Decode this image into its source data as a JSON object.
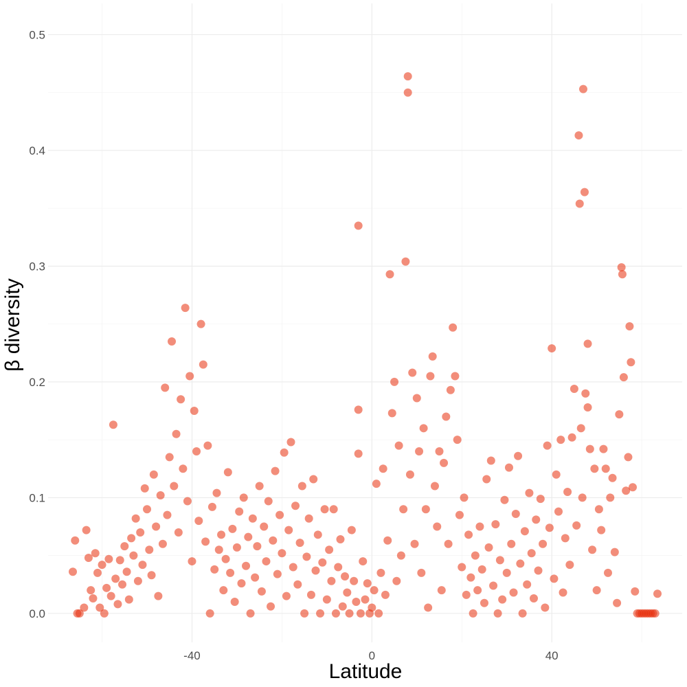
{
  "chart_data": {
    "type": "scatter",
    "xlabel": "Latitude",
    "ylabel": "β diversity",
    "xlim": [
      -72,
      69
    ],
    "ylim": [
      -0.025,
      0.527
    ],
    "x_ticks": [
      -40,
      0,
      40
    ],
    "x_tick_labels": [
      "-40",
      "0",
      "40"
    ],
    "y_ticks": [
      0.0,
      0.1,
      0.2,
      0.3,
      0.4,
      0.5
    ],
    "y_tick_labels": [
      "0.0",
      "0.1",
      "0.2",
      "0.3",
      "0.4",
      "0.5"
    ],
    "grid": true,
    "point_color": "#e8300d",
    "point_opacity": 0.55,
    "series": [
      {
        "points": [
          [
            -66.5,
            0.036
          ],
          [
            -66,
            0.063
          ],
          [
            -65.5,
            0.0
          ],
          [
            -65,
            0.0
          ],
          [
            -64,
            0.005
          ],
          [
            -63.5,
            0.072
          ],
          [
            -63,
            0.048
          ],
          [
            -62.5,
            0.02
          ],
          [
            -62,
            0.013
          ],
          [
            -61.5,
            0.052
          ],
          [
            -61,
            0.035
          ],
          [
            -60.5,
            0.005
          ],
          [
            -60,
            0.042
          ],
          [
            -59.5,
            0.0
          ],
          [
            -59,
            0.022
          ],
          [
            -58.5,
            0.047
          ],
          [
            -58,
            0.015
          ],
          [
            -57.5,
            0.163
          ],
          [
            -57,
            0.03
          ],
          [
            -56.5,
            0.008
          ],
          [
            -56,
            0.046
          ],
          [
            -55.5,
            0.025
          ],
          [
            -55,
            0.058
          ],
          [
            -54.5,
            0.036
          ],
          [
            -54,
            0.012
          ],
          [
            -53.5,
            0.065
          ],
          [
            -53,
            0.05
          ],
          [
            -52.5,
            0.082
          ],
          [
            -52,
            0.028
          ],
          [
            -51.5,
            0.07
          ],
          [
            -51,
            0.042
          ],
          [
            -50.5,
            0.108
          ],
          [
            -50,
            0.09
          ],
          [
            -49.5,
            0.055
          ],
          [
            -49,
            0.033
          ],
          [
            -48.5,
            0.12
          ],
          [
            -48,
            0.075
          ],
          [
            -47.5,
            0.015
          ],
          [
            -47,
            0.102
          ],
          [
            -46.5,
            0.06
          ],
          [
            -46,
            0.195
          ],
          [
            -45.5,
            0.085
          ],
          [
            -45,
            0.135
          ],
          [
            -44.5,
            0.235
          ],
          [
            -44,
            0.11
          ],
          [
            -43.5,
            0.155
          ],
          [
            -43,
            0.07
          ],
          [
            -42.5,
            0.185
          ],
          [
            -42,
            0.125
          ],
          [
            -41.5,
            0.264
          ],
          [
            -41,
            0.097
          ],
          [
            -40.5,
            0.205
          ],
          [
            -40,
            0.045
          ],
          [
            -39.5,
            0.175
          ],
          [
            -39,
            0.14
          ],
          [
            -38.5,
            0.08
          ],
          [
            -38,
            0.25
          ],
          [
            -37.5,
            0.215
          ],
          [
            -37,
            0.062
          ],
          [
            -36.5,
            0.145
          ],
          [
            -36,
            0.0
          ],
          [
            -35.5,
            0.092
          ],
          [
            -35,
            0.038
          ],
          [
            -34.5,
            0.104
          ],
          [
            -34,
            0.055
          ],
          [
            -33.5,
            0.068
          ],
          [
            -33,
            0.02
          ],
          [
            -32.5,
            0.047
          ],
          [
            -32,
            0.122
          ],
          [
            -31.5,
            0.035
          ],
          [
            -31,
            0.073
          ],
          [
            -30.5,
            0.01
          ],
          [
            -30,
            0.057
          ],
          [
            -29.5,
            0.088
          ],
          [
            -29,
            0.026
          ],
          [
            -28.5,
            0.1
          ],
          [
            -28,
            0.041
          ],
          [
            -27.5,
            0.066
          ],
          [
            -27,
            0.0
          ],
          [
            -26.5,
            0.082
          ],
          [
            -26,
            0.031
          ],
          [
            -25.5,
            0.058
          ],
          [
            -25,
            0.11
          ],
          [
            -24.5,
            0.019
          ],
          [
            -24,
            0.075
          ],
          [
            -23.5,
            0.045
          ],
          [
            -23,
            0.097
          ],
          [
            -22.5,
            0.006
          ],
          [
            -22,
            0.063
          ],
          [
            -21.5,
            0.123
          ],
          [
            -21,
            0.034
          ],
          [
            -20.5,
            0.085
          ],
          [
            -20,
            0.052
          ],
          [
            -19.5,
            0.139
          ],
          [
            -19,
            0.015
          ],
          [
            -18.5,
            0.072
          ],
          [
            -18,
            0.148
          ],
          [
            -17.5,
            0.04
          ],
          [
            -17,
            0.093
          ],
          [
            -16.5,
            0.025
          ],
          [
            -16,
            0.061
          ],
          [
            -15.5,
            0.11
          ],
          [
            -15,
            0.0
          ],
          [
            -14.5,
            0.049
          ],
          [
            -14,
            0.082
          ],
          [
            -13.5,
            0.016
          ],
          [
            -13,
            0.116
          ],
          [
            -12.5,
            0.037
          ],
          [
            -12,
            0.068
          ],
          [
            -11.5,
            0.0
          ],
          [
            -11,
            0.044
          ],
          [
            -10.5,
            0.09
          ],
          [
            -10,
            0.012
          ],
          [
            -9.5,
            0.055
          ],
          [
            -9,
            0.028
          ],
          [
            -8.5,
            0.09
          ],
          [
            -8,
            0.0
          ],
          [
            -7.5,
            0.04
          ],
          [
            -7,
            0.064
          ],
          [
            -6.5,
            0.006
          ],
          [
            -6,
            0.032
          ],
          [
            -5.5,
            0.018
          ],
          [
            -5,
            0.0
          ],
          [
            -4.5,
            0.072
          ],
          [
            -4,
            0.028
          ],
          [
            -3.5,
            0.01
          ],
          [
            -3,
            0.335
          ],
          [
            -3,
            0.176
          ],
          [
            -3,
            0.138
          ],
          [
            -2.5,
            0.0
          ],
          [
            -2,
            0.045
          ],
          [
            -1.5,
            0.012
          ],
          [
            -1,
            0.026
          ],
          [
            -0.5,
            0.0
          ],
          [
            0,
            0.005
          ],
          [
            0.5,
            0.02
          ],
          [
            1,
            0.112
          ],
          [
            1.5,
            0.0
          ],
          [
            2,
            0.035
          ],
          [
            2.5,
            0.125
          ],
          [
            3,
            0.016
          ],
          [
            3.5,
            0.063
          ],
          [
            4,
            0.293
          ],
          [
            4.5,
            0.173
          ],
          [
            5,
            0.2
          ],
          [
            5.5,
            0.028
          ],
          [
            6,
            0.145
          ],
          [
            6.5,
            0.05
          ],
          [
            7,
            0.09
          ],
          [
            7.5,
            0.304
          ],
          [
            8,
            0.464
          ],
          [
            8,
            0.45
          ],
          [
            8.5,
            0.12
          ],
          [
            9,
            0.208
          ],
          [
            9.5,
            0.06
          ],
          [
            10,
            0.186
          ],
          [
            10.5,
            0.14
          ],
          [
            11,
            0.035
          ],
          [
            11.5,
            0.16
          ],
          [
            12,
            0.09
          ],
          [
            12.5,
            0.005
          ],
          [
            13,
            0.205
          ],
          [
            13.5,
            0.222
          ],
          [
            14,
            0.11
          ],
          [
            14.5,
            0.075
          ],
          [
            15,
            0.14
          ],
          [
            15.5,
            0.02
          ],
          [
            16,
            0.13
          ],
          [
            16.5,
            0.17
          ],
          [
            17,
            0.06
          ],
          [
            17.5,
            0.193
          ],
          [
            18,
            0.247
          ],
          [
            18.5,
            0.205
          ],
          [
            19,
            0.15
          ],
          [
            19.5,
            0.085
          ],
          [
            20,
            0.04
          ],
          [
            20.5,
            0.1
          ],
          [
            21,
            0.016
          ],
          [
            21.5,
            0.068
          ],
          [
            22,
            0.031
          ],
          [
            22.5,
            0.0
          ],
          [
            23,
            0.05
          ],
          [
            23.5,
            0.02
          ],
          [
            24,
            0.075
          ],
          [
            24.5,
            0.038
          ],
          [
            25,
            0.009
          ],
          [
            25.5,
            0.116
          ],
          [
            26,
            0.057
          ],
          [
            26.5,
            0.132
          ],
          [
            27,
            0.024
          ],
          [
            27.5,
            0.077
          ],
          [
            28,
            0.0
          ],
          [
            28.5,
            0.046
          ],
          [
            29,
            0.012
          ],
          [
            29.5,
            0.098
          ],
          [
            30,
            0.035
          ],
          [
            30.5,
            0.126
          ],
          [
            31,
            0.06
          ],
          [
            31.5,
            0.018
          ],
          [
            32,
            0.086
          ],
          [
            32.5,
            0.136
          ],
          [
            33,
            0.043
          ],
          [
            33.5,
            0.0
          ],
          [
            34,
            0.071
          ],
          [
            34.5,
            0.025
          ],
          [
            35,
            0.104
          ],
          [
            35.5,
            0.052
          ],
          [
            36,
            0.013
          ],
          [
            36.5,
            0.081
          ],
          [
            37,
            0.037
          ],
          [
            37.5,
            0.099
          ],
          [
            38,
            0.06
          ],
          [
            38.5,
            0.005
          ],
          [
            39,
            0.145
          ],
          [
            39.5,
            0.074
          ],
          [
            40,
            0.229
          ],
          [
            40.5,
            0.03
          ],
          [
            41,
            0.12
          ],
          [
            41.5,
            0.088
          ],
          [
            42,
            0.15
          ],
          [
            42.5,
            0.018
          ],
          [
            43,
            0.065
          ],
          [
            43.5,
            0.105
          ],
          [
            44,
            0.042
          ],
          [
            44.5,
            0.152
          ],
          [
            45,
            0.194
          ],
          [
            45.5,
            0.076
          ],
          [
            46,
            0.413
          ],
          [
            46.2,
            0.354
          ],
          [
            46.5,
            0.16
          ],
          [
            46.8,
            0.1
          ],
          [
            47,
            0.453
          ],
          [
            47.3,
            0.364
          ],
          [
            47.5,
            0.19
          ],
          [
            48,
            0.233
          ],
          [
            48,
            0.178
          ],
          [
            48.5,
            0.142
          ],
          [
            49,
            0.055
          ],
          [
            49.5,
            0.125
          ],
          [
            50,
            0.02
          ],
          [
            50.5,
            0.09
          ],
          [
            51,
            0.072
          ],
          [
            51.5,
            0.142
          ],
          [
            52,
            0.125
          ],
          [
            52.5,
            0.035
          ],
          [
            53,
            0.1
          ],
          [
            53.5,
            0.117
          ],
          [
            54,
            0.053
          ],
          [
            54.5,
            0.009
          ],
          [
            55,
            0.172
          ],
          [
            55.5,
            0.299
          ],
          [
            55.7,
            0.293
          ],
          [
            56,
            0.204
          ],
          [
            56.5,
            0.106
          ],
          [
            57,
            0.135
          ],
          [
            57.3,
            0.248
          ],
          [
            57.6,
            0.217
          ],
          [
            58,
            0.109
          ],
          [
            58.5,
            0.019
          ],
          [
            59,
            0.0
          ],
          [
            59.5,
            0.0
          ],
          [
            60,
            0.0
          ],
          [
            60.5,
            0.0
          ],
          [
            61,
            0.0
          ],
          [
            61.5,
            0.0
          ],
          [
            62,
            0.0
          ],
          [
            62.5,
            0.0
          ],
          [
            63,
            0.0
          ],
          [
            63.5,
            0.017
          ]
        ]
      }
    ]
  }
}
